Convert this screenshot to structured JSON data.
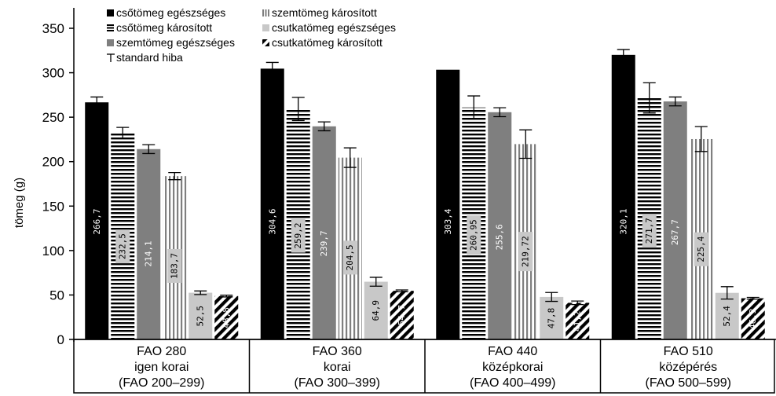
{
  "chart_data": {
    "type": "bar",
    "title": "",
    "xlabel": "",
    "ylabel": "tömeg (g)",
    "ylim": [
      0,
      350
    ],
    "yticks": [
      0,
      50,
      100,
      150,
      200,
      250,
      300,
      350
    ],
    "grid": false,
    "legend_position": "top-left",
    "categories": [
      [
        "FAO 280",
        "igen korai",
        "(FAO 200–299)"
      ],
      [
        "FAO 360",
        "korai",
        "(FAO 300–399)"
      ],
      [
        "FAO 440",
        "középkorai",
        "(FAO 400–499)"
      ],
      [
        "FAO 510",
        "középérés",
        "(FAO 500–599)"
      ]
    ],
    "series": [
      {
        "name": "csőtömeg egészséges",
        "pattern": "solid-black",
        "values": [
          266.7,
          304.6,
          303.4,
          320.1
        ],
        "labels": [
          "266,7",
          "304,6",
          "303,4",
          "320,1"
        ],
        "errors": [
          6,
          7,
          0,
          6
        ]
      },
      {
        "name": "csőtömeg károsított",
        "pattern": "horizontal-stripes",
        "values": [
          232.5,
          259.2,
          260.95,
          271.7
        ],
        "labels": [
          "232,5",
          "259,2",
          "260,95",
          "271,7"
        ],
        "errors": [
          6,
          13,
          13,
          17
        ]
      },
      {
        "name": "szemtömeg egészséges",
        "pattern": "solid-gray",
        "values": [
          214.1,
          239.7,
          255.6,
          267.7
        ],
        "labels": [
          "214,1",
          "239,7",
          "255,6",
          "267,7"
        ],
        "errors": [
          5,
          5,
          5,
          5
        ]
      },
      {
        "name": "szemtömeg károsított",
        "pattern": "vertical-stripes",
        "values": [
          183.7,
          204.5,
          219.72,
          225.4
        ],
        "labels": [
          "183,7",
          "204,5",
          "219,72",
          "225,4"
        ],
        "errors": [
          4,
          11,
          16,
          14
        ]
      },
      {
        "name": "csutkatömeg egészséges",
        "pattern": "light-gray",
        "values": [
          52.5,
          64.9,
          47.8,
          52.4
        ],
        "labels": [
          "52,5",
          "64,9",
          "47,8",
          "52,4"
        ],
        "errors": [
          2,
          5,
          5,
          7
        ]
      },
      {
        "name": "csutkatömeg károsított",
        "pattern": "diagonal-stripes",
        "values": [
          48.8,
          54.7,
          41.2,
          46.3
        ],
        "labels": [
          "48,8",
          "54,7",
          "41,2",
          "46,3"
        ],
        "errors": [
          1,
          1,
          2,
          1
        ]
      }
    ],
    "error_legend": "standard hiba",
    "colors": {
      "black": "#000000",
      "gray": "#7f7f7f",
      "light_gray": "#c8c8c8",
      "white": "#ffffff"
    }
  }
}
